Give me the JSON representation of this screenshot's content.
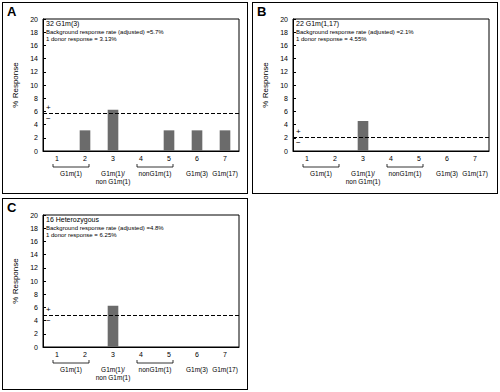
{
  "chart_data": [
    {
      "panel": "A",
      "type": "bar",
      "title": "32 G1m(3)",
      "annotations": [
        "Background response rate (adjusted) =5.7%",
        "1 donor response = 3.13%"
      ],
      "y_label": "% Response",
      "categories": [
        "1",
        "2",
        "3",
        "4",
        "5",
        "6",
        "7"
      ],
      "values": [
        0,
        3.13,
        6.25,
        0,
        3.13,
        3.13,
        3.13
      ],
      "color": "#6b6b6b",
      "background_rate": 5.7,
      "background_marks": [
        "+",
        "−"
      ],
      "groups": [
        {
          "label": "G1m(1)",
          "from": "1",
          "to": "2"
        },
        {
          "label": "G1m(1)/\nnon G1m(1)",
          "from": "3",
          "to": "3"
        },
        {
          "label": "nonG1m(1)",
          "from": "4",
          "to": "5"
        },
        {
          "label": "G1m(3)",
          "from": "6",
          "to": "6"
        },
        {
          "label": "G1m(17)",
          "from": "7",
          "to": "7"
        }
      ],
      "ylim": [
        0,
        20
      ],
      "yticks": [
        0,
        2,
        4,
        6,
        8,
        10,
        12,
        14,
        16,
        18,
        20
      ]
    },
    {
      "panel": "B",
      "type": "bar",
      "title": "22 G1m(1,17)",
      "annotations": [
        "Background response rate (adjusted) =2.1%",
        "1 donor response = 4.55%"
      ],
      "y_label": "% Response",
      "categories": [
        "1",
        "2",
        "3",
        "4",
        "5",
        "6",
        "7"
      ],
      "values": [
        0,
        0,
        4.55,
        0,
        0,
        0,
        0
      ],
      "color": "#6b6b6b",
      "background_rate": 2.1,
      "background_marks": [
        "+",
        "−"
      ],
      "groups": [
        {
          "label": "G1m(1)",
          "from": "1",
          "to": "2"
        },
        {
          "label": "G1m(1)/\nnon G1m(1)",
          "from": "3",
          "to": "3"
        },
        {
          "label": "nonG1m(1)",
          "from": "4",
          "to": "5"
        },
        {
          "label": "G1m(3)",
          "from": "6",
          "to": "6"
        },
        {
          "label": "G1m(17)",
          "from": "7",
          "to": "7"
        }
      ],
      "ylim": [
        0,
        20
      ],
      "yticks": [
        0,
        2,
        4,
        6,
        8,
        10,
        12,
        14,
        16,
        18,
        20
      ]
    },
    {
      "panel": "C",
      "type": "bar",
      "title": "16 Heterozygous",
      "annotations": [
        "Background response rate (adjusted) =4.8%",
        "1 donor response = 6.25%"
      ],
      "y_label": "% Response",
      "categories": [
        "1",
        "2",
        "3",
        "4",
        "5",
        "6",
        "7"
      ],
      "values": [
        0,
        0,
        6.25,
        0,
        0,
        0,
        0
      ],
      "color": "#6b6b6b",
      "background_rate": 4.8,
      "background_marks": [
        "+",
        "−"
      ],
      "groups": [
        {
          "label": "G1m(1)",
          "from": "1",
          "to": "2"
        },
        {
          "label": "G1m(1)/\nnon G1m(1)",
          "from": "3",
          "to": "3"
        },
        {
          "label": "nonG1m(1)",
          "from": "4",
          "to": "5"
        },
        {
          "label": "G1m(3)",
          "from": "6",
          "to": "6"
        },
        {
          "label": "G1m(17)",
          "from": "7",
          "to": "7"
        }
      ],
      "ylim": [
        0,
        20
      ],
      "yticks": [
        0,
        2,
        4,
        6,
        8,
        10,
        12,
        14,
        16,
        18,
        20
      ]
    }
  ]
}
